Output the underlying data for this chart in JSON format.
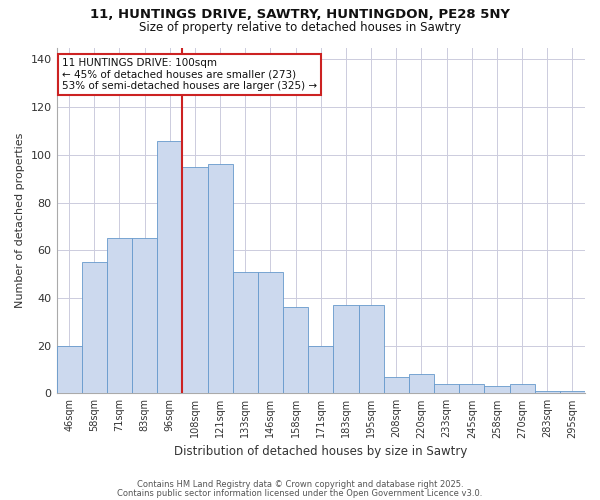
{
  "title1": "11, HUNTINGS DRIVE, SAWTRY, HUNTINGDON, PE28 5NY",
  "title2": "Size of property relative to detached houses in Sawtry",
  "xlabel": "Distribution of detached houses by size in Sawtry",
  "ylabel": "Number of detached properties",
  "categories": [
    "46sqm",
    "58sqm",
    "71sqm",
    "83sqm",
    "96sqm",
    "108sqm",
    "121sqm",
    "133sqm",
    "146sqm",
    "158sqm",
    "171sqm",
    "183sqm",
    "195sqm",
    "208sqm",
    "220sqm",
    "233sqm",
    "245sqm",
    "258sqm",
    "270sqm",
    "283sqm",
    "295sqm"
  ],
  "values": [
    20,
    55,
    65,
    65,
    106,
    95,
    96,
    51,
    51,
    36,
    20,
    37,
    37,
    7,
    8,
    4,
    4,
    3,
    4,
    1,
    1
  ],
  "bar_color": "#ccd9ee",
  "bar_edge_color": "#6699cc",
  "vline_color": "#cc2222",
  "annotation_text": "11 HUNTINGS DRIVE: 100sqm\n← 45% of detached houses are smaller (273)\n53% of semi-detached houses are larger (325) →",
  "annotation_box_facecolor": "#ffffff",
  "annotation_box_edgecolor": "#cc2222",
  "footer1": "Contains HM Land Registry data © Crown copyright and database right 2025.",
  "footer2": "Contains public sector information licensed under the Open Government Licence v3.0.",
  "plot_bg_color": "#ffffff",
  "fig_bg_color": "#ffffff",
  "grid_color": "#ccccdd",
  "ylim": [
    0,
    145
  ],
  "yticks": [
    0,
    20,
    40,
    60,
    80,
    100,
    120,
    140
  ],
  "vline_index": 4
}
